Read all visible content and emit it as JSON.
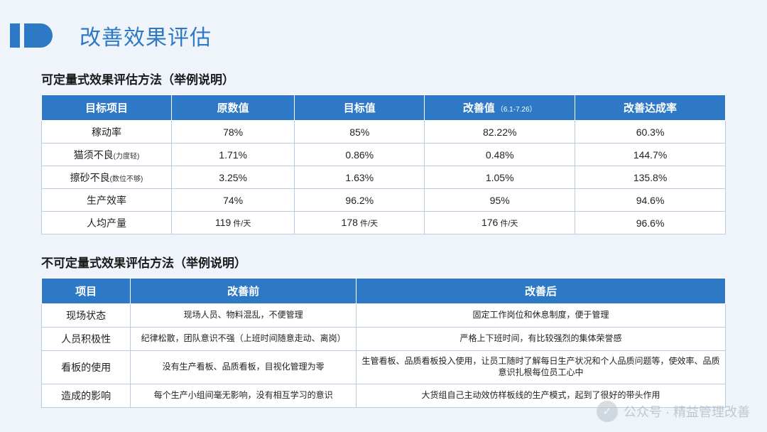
{
  "title": "改善效果评估",
  "colors": {
    "accent": "#2d79c6",
    "page_bg": "#eef4fa",
    "cell_border": "#b8cce4",
    "header_text": "#ffffff",
    "body_text": "#222222"
  },
  "table1": {
    "heading": "可定量式效果评估方法（举例说明）",
    "columns": {
      "c0": "目标项目",
      "c1": "原数值",
      "c2": "目标值",
      "c3": "改善值",
      "c3_sub": "（6.1-7.26）",
      "c4": "改善达成率"
    },
    "rows": [
      {
        "c0": "稼动率",
        "c0_sub": "",
        "c1": "78%",
        "c2": "85%",
        "c3": "82.22%",
        "c4": "60.3%"
      },
      {
        "c0": "猫须不良",
        "c0_sub": "(力度轻)",
        "c1": "1.71%",
        "c2": "0.86%",
        "c3": "0.48%",
        "c4": "144.7%"
      },
      {
        "c0": "擦砂不良",
        "c0_sub": "(数位不够)",
        "c1": "3.25%",
        "c2": "1.63%",
        "c3": "1.05%",
        "c4": "135.8%"
      },
      {
        "c0": "生产效率",
        "c0_sub": "",
        "c1": "74%",
        "c2": "96.2%",
        "c3": "95%",
        "c4": "94.6%"
      },
      {
        "c0": "人均产量",
        "c0_sub": "",
        "c1": "119",
        "c1_unit": "件/天",
        "c2": "178",
        "c2_unit": "件/天",
        "c3": "176",
        "c3_unit": "件/天",
        "c4": "96.6%"
      }
    ]
  },
  "table2": {
    "heading": "不可定量式效果评估方法（举例说明）",
    "columns": {
      "c0": "项目",
      "c1": "改善前",
      "c2": "改善后"
    },
    "rows": [
      {
        "c0": "现场状态",
        "c1": "现场人员、物料混乱，不便管理",
        "c2": "固定工作岗位和休息制度，便于管理"
      },
      {
        "c0": "人员积极性",
        "c1": "纪律松散，团队意识不强（上班时间随意走动、离岗）",
        "c2": "严格上下班时间，有比较强烈的集体荣誉感"
      },
      {
        "c0": "看板的使用",
        "c1": "没有生产看板、品质看板，目视化管理为零",
        "c2": "生管看板、品质看板投入使用，让员工随时了解每日生产状况和个人品质问题等，使效率、品质意识扎根每位员工心中"
      },
      {
        "c0": "造成的影响",
        "c1": "每个生产小组间毫无影响，没有相互学习的意识",
        "c2": "大货组自己主动效仿样板线的生产模式，起到了很好的带头作用"
      }
    ]
  },
  "watermark": {
    "icon_glyph": "✓",
    "text": "公众号 · 精益管理改善"
  }
}
